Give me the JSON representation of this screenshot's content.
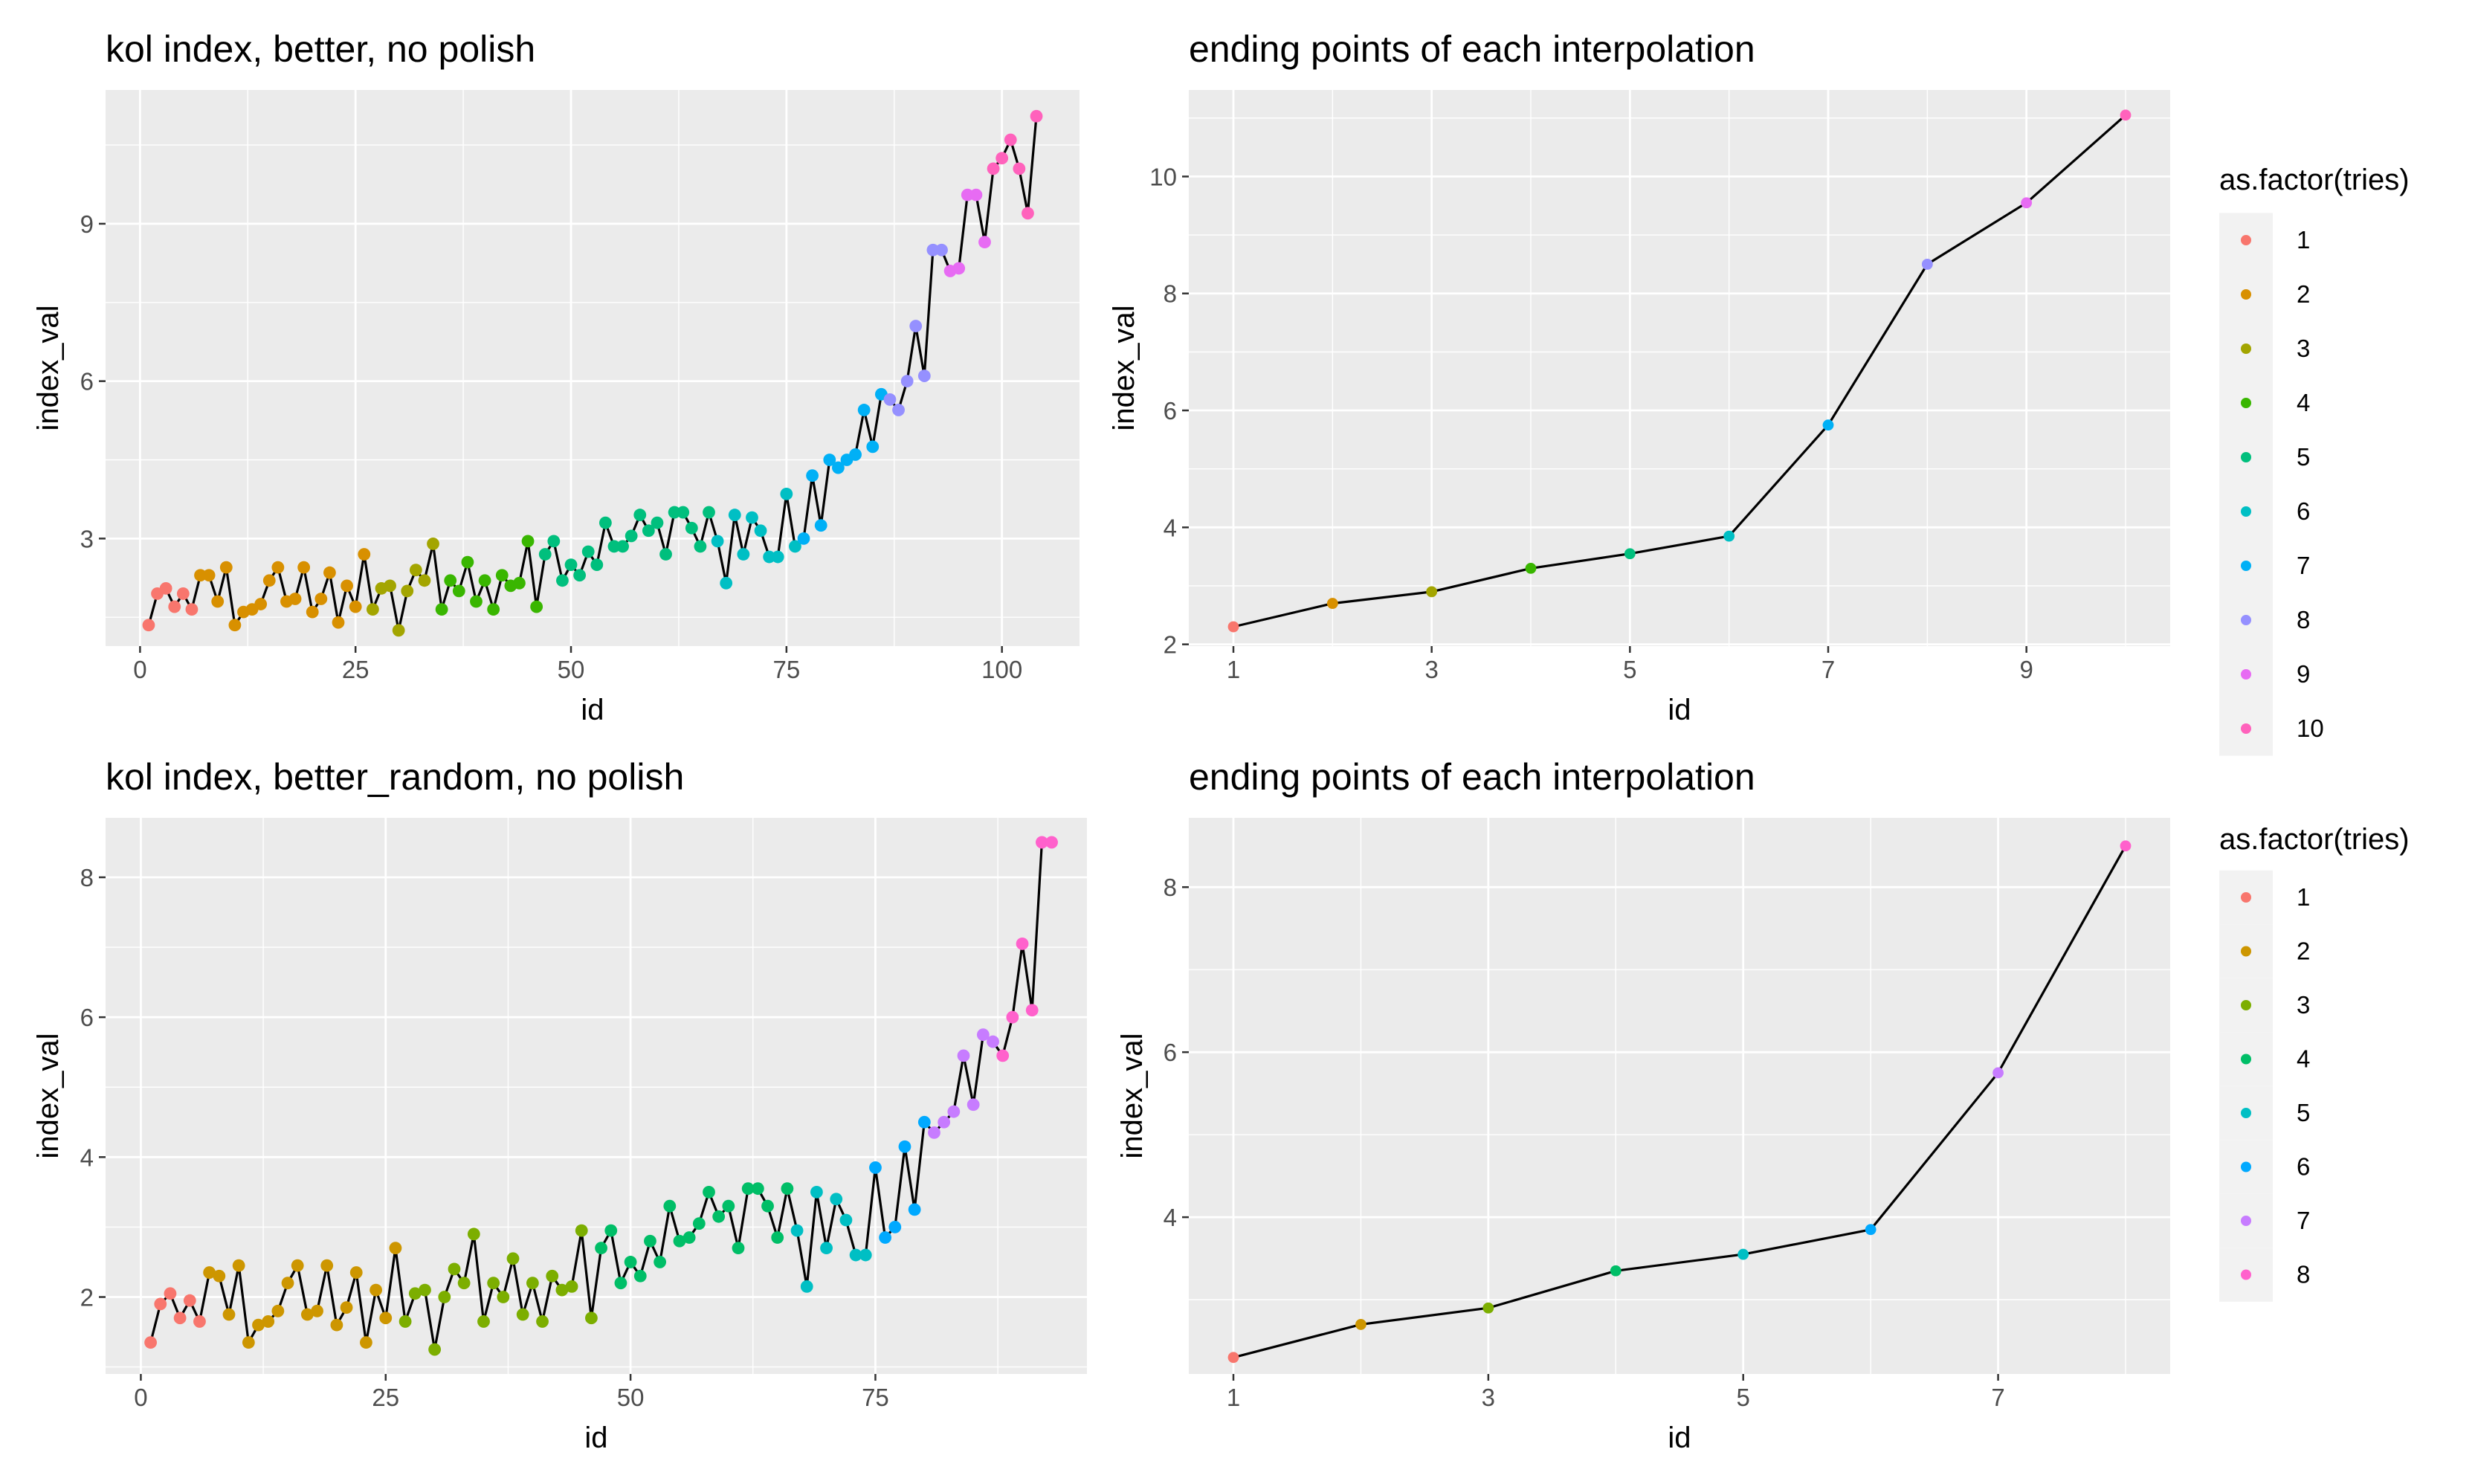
{
  "palette10": [
    "#F8766D",
    "#D89000",
    "#A3A500",
    "#39B600",
    "#00BF7D",
    "#00BFC4",
    "#00B0F6",
    "#9590FF",
    "#E76BF3",
    "#FF62BC"
  ],
  "palette8": [
    "#F8766D",
    "#CD9600",
    "#7CAE00",
    "#00BE67",
    "#00BFC4",
    "#00A9FF",
    "#C77CFF",
    "#FF61CC"
  ],
  "chart_data": [
    {
      "type": "line",
      "title": "kol index, better, no polish",
      "xlabel": "id",
      "ylabel": "index_val",
      "xlim": [
        -4,
        109
      ],
      "ylim": [
        0.95,
        11.55
      ],
      "xticks": [
        0,
        25,
        50,
        75,
        100
      ],
      "yticks": [
        3,
        6,
        9
      ],
      "grid": true,
      "legend": null,
      "x": [
        1,
        2,
        3,
        4,
        5,
        6,
        7,
        8,
        9,
        10,
        11,
        12,
        13,
        14,
        15,
        16,
        17,
        18,
        19,
        20,
        21,
        22,
        23,
        24,
        25,
        26,
        27,
        28,
        29,
        30,
        31,
        32,
        33,
        34,
        35,
        36,
        37,
        38,
        39,
        40,
        41,
        42,
        43,
        44,
        45,
        46,
        47,
        48,
        49,
        50,
        51,
        52,
        53,
        54,
        55,
        56,
        57,
        58,
        59,
        60,
        61,
        62,
        63,
        64,
        65,
        66,
        67,
        68,
        69,
        70,
        71,
        72,
        73,
        74,
        75,
        76,
        77,
        78,
        79,
        80,
        81,
        82,
        83,
        84,
        85,
        86,
        87,
        88,
        89,
        90,
        91,
        92,
        93,
        94,
        95,
        96,
        97,
        98,
        99,
        100,
        101,
        102,
        103,
        104
      ],
      "y": [
        1.35,
        1.95,
        2.05,
        1.7,
        1.95,
        1.65,
        2.3,
        2.3,
        1.8,
        2.45,
        1.35,
        1.6,
        1.65,
        1.75,
        2.2,
        2.45,
        1.8,
        1.85,
        2.45,
        1.6,
        1.85,
        2.35,
        1.4,
        2.1,
        1.7,
        2.7,
        1.65,
        2.05,
        2.1,
        1.25,
        2.0,
        2.4,
        2.2,
        2.9,
        1.65,
        2.2,
        2.0,
        2.55,
        1.8,
        2.2,
        1.65,
        2.3,
        2.1,
        2.15,
        2.95,
        1.7,
        2.7,
        2.95,
        2.2,
        2.5,
        2.3,
        2.75,
        2.5,
        3.3,
        2.85,
        2.85,
        3.05,
        3.45,
        3.15,
        3.3,
        2.7,
        3.5,
        3.5,
        3.2,
        2.85,
        3.5,
        2.95,
        2.15,
        3.45,
        2.7,
        3.4,
        3.15,
        2.65,
        2.65,
        3.85,
        2.85,
        3.0,
        4.2,
        3.25,
        4.5,
        4.35,
        4.5,
        4.6,
        5.45,
        4.75,
        5.75,
        5.65,
        5.45,
        6.0,
        7.05,
        6.1,
        8.5,
        8.5,
        8.1,
        8.15,
        9.55,
        9.55,
        8.65,
        10.05,
        10.25,
        10.6,
        10.05,
        9.2,
        11.05
      ],
      "group": [
        1,
        1,
        1,
        1,
        1,
        1,
        2,
        2,
        2,
        2,
        2,
        2,
        2,
        2,
        2,
        2,
        2,
        2,
        2,
        2,
        2,
        2,
        2,
        2,
        2,
        2,
        3,
        3,
        3,
        3,
        3,
        3,
        3,
        3,
        4,
        4,
        4,
        4,
        4,
        4,
        4,
        4,
        4,
        4,
        4,
        4,
        5,
        5,
        5,
        5,
        5,
        5,
        5,
        5,
        5,
        5,
        5,
        5,
        5,
        5,
        5,
        5,
        5,
        5,
        5,
        5,
        6,
        6,
        6,
        6,
        6,
        6,
        6,
        6,
        6,
        6,
        7,
        7,
        7,
        7,
        7,
        7,
        7,
        7,
        7,
        7,
        8,
        8,
        8,
        8,
        8,
        8,
        8,
        9,
        9,
        9,
        9,
        9,
        10,
        10,
        10,
        10,
        10,
        10
      ]
    },
    {
      "type": "line",
      "title": "ending points of each interpolation",
      "xlabel": "id",
      "ylabel": "index_val",
      "xlim": [
        0.55,
        10.45
      ],
      "ylim": [
        1.97,
        11.48
      ],
      "xticks": [
        1,
        3,
        5,
        7,
        9
      ],
      "yticks": [
        2,
        4,
        6,
        8,
        10
      ],
      "grid": true,
      "legend": "right",
      "x": [
        1,
        2,
        3,
        4,
        5,
        6,
        7,
        8,
        9,
        10
      ],
      "y": [
        2.3,
        2.7,
        2.9,
        3.3,
        3.55,
        3.85,
        5.75,
        8.5,
        9.55,
        11.05
      ],
      "group": [
        1,
        2,
        3,
        4,
        5,
        6,
        7,
        8,
        9,
        10
      ],
      "legend_title": "as.factor(tries)",
      "legend_labels": [
        "1",
        "2",
        "3",
        "4",
        "5",
        "6",
        "7",
        "8",
        "9",
        "10"
      ]
    },
    {
      "type": "line",
      "title": "kol index, better_random, no polish",
      "xlabel": "id",
      "ylabel": "index_val",
      "xlim": [
        -3.6,
        96.6
      ],
      "ylim": [
        0.9,
        8.85
      ],
      "xticks": [
        0,
        25,
        50,
        75
      ],
      "yticks": [
        2,
        4,
        6,
        8
      ],
      "grid": true,
      "legend": null,
      "x": [
        1,
        2,
        3,
        4,
        5,
        6,
        7,
        8,
        9,
        10,
        11,
        12,
        13,
        14,
        15,
        16,
        17,
        18,
        19,
        20,
        21,
        22,
        23,
        24,
        25,
        26,
        27,
        28,
        29,
        30,
        31,
        32,
        33,
        34,
        35,
        36,
        37,
        38,
        39,
        40,
        41,
        42,
        43,
        44,
        45,
        46,
        47,
        48,
        49,
        50,
        51,
        52,
        53,
        54,
        55,
        56,
        57,
        58,
        59,
        60,
        61,
        62,
        63,
        64,
        65,
        66,
        67,
        68,
        69,
        70,
        71,
        72,
        73,
        74,
        75,
        76,
        77,
        78,
        79,
        80,
        81,
        82,
        83,
        84,
        85,
        86,
        87,
        88,
        89,
        90,
        91,
        92,
        93
      ],
      "y": [
        1.35,
        1.9,
        2.05,
        1.7,
        1.95,
        1.65,
        2.35,
        2.3,
        1.75,
        2.45,
        1.35,
        1.6,
        1.65,
        1.8,
        2.2,
        2.45,
        1.75,
        1.8,
        2.45,
        1.6,
        1.85,
        2.35,
        1.35,
        2.1,
        1.7,
        2.7,
        1.65,
        2.05,
        2.1,
        1.25,
        2.0,
        2.4,
        2.2,
        2.9,
        1.65,
        2.2,
        2.0,
        2.55,
        1.75,
        2.2,
        1.65,
        2.3,
        2.1,
        2.15,
        2.95,
        1.7,
        2.7,
        2.95,
        2.2,
        2.5,
        2.3,
        2.8,
        2.5,
        3.3,
        2.8,
        2.85,
        3.05,
        3.5,
        3.15,
        3.3,
        2.7,
        3.55,
        3.55,
        3.3,
        2.85,
        3.55,
        2.95,
        2.15,
        3.5,
        2.7,
        3.4,
        3.1,
        2.6,
        2.6,
        3.85,
        2.85,
        3.0,
        4.15,
        3.25,
        4.5,
        4.35,
        4.5,
        4.65,
        5.45,
        4.75,
        5.75,
        5.65,
        5.45,
        6.0,
        7.05,
        6.1,
        8.5,
        8.5
      ],
      "group": [
        1,
        1,
        1,
        1,
        1,
        1,
        2,
        2,
        2,
        2,
        2,
        2,
        2,
        2,
        2,
        2,
        2,
        2,
        2,
        2,
        2,
        2,
        2,
        2,
        2,
        2,
        3,
        3,
        3,
        3,
        3,
        3,
        3,
        3,
        3,
        3,
        3,
        3,
        3,
        3,
        3,
        3,
        3,
        3,
        3,
        3,
        4,
        4,
        4,
        4,
        4,
        4,
        4,
        4,
        4,
        4,
        4,
        4,
        4,
        4,
        4,
        4,
        4,
        4,
        4,
        4,
        5,
        5,
        5,
        5,
        5,
        5,
        5,
        5,
        6,
        6,
        6,
        6,
        6,
        6,
        7,
        7,
        7,
        7,
        7,
        7,
        7,
        8,
        8,
        8,
        8,
        8,
        8
      ]
    },
    {
      "type": "line",
      "title": "ending points of each interpolation",
      "xlabel": "id",
      "ylabel": "index_val",
      "xlim": [
        0.65,
        8.35
      ],
      "ylim": [
        2.1,
        8.84
      ],
      "xticks": [
        1,
        3,
        5,
        7
      ],
      "yticks": [
        4,
        6,
        8
      ],
      "grid": true,
      "legend": "right",
      "x": [
        1,
        2,
        3,
        4,
        5,
        6,
        7,
        8
      ],
      "y": [
        2.3,
        2.7,
        2.9,
        3.35,
        3.55,
        3.85,
        5.75,
        8.5
      ],
      "group": [
        1,
        2,
        3,
        4,
        5,
        6,
        7,
        8
      ],
      "legend_title": "as.factor(tries)",
      "legend_labels": [
        "1",
        "2",
        "3",
        "4",
        "5",
        "6",
        "7",
        "8"
      ]
    }
  ]
}
